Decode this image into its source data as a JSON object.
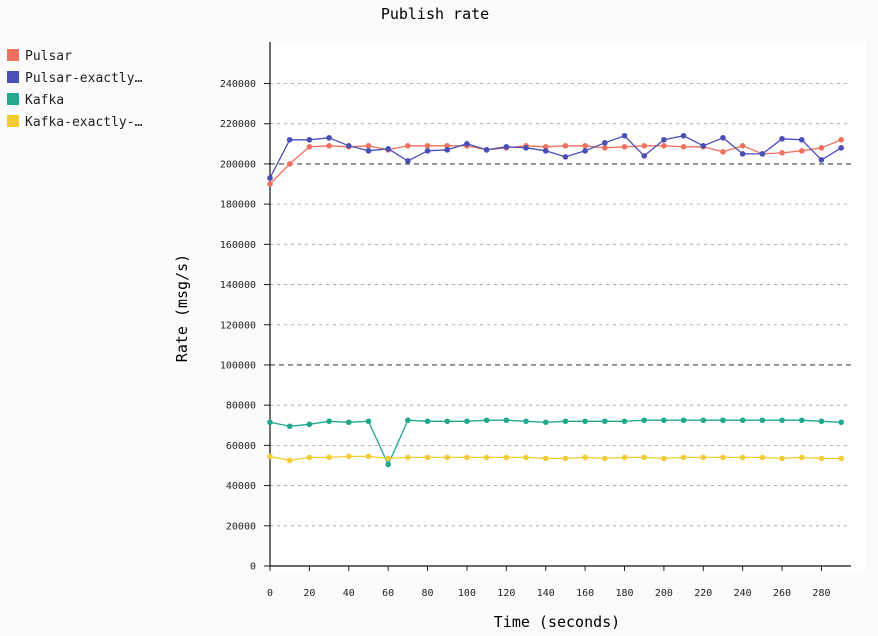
{
  "chart_data": {
    "type": "line",
    "title": "Publish rate",
    "xlabel": "Time (seconds)",
    "ylabel": "Rate (msg/s)",
    "xlim": [
      0,
      295
    ],
    "ylim": [
      0,
      260000
    ],
    "grid": "horizontal dashed",
    "legend_placement": "left",
    "x_ticks": [
      0,
      20,
      40,
      60,
      80,
      100,
      120,
      140,
      160,
      180,
      200,
      220,
      240,
      260,
      280
    ],
    "y_ticks": [
      0,
      20000,
      40000,
      60000,
      80000,
      100000,
      120000,
      140000,
      160000,
      180000,
      200000,
      220000,
      240000
    ],
    "x": [
      0,
      10,
      20,
      30,
      40,
      50,
      60,
      70,
      80,
      90,
      100,
      110,
      120,
      130,
      140,
      150,
      160,
      170,
      180,
      190,
      200,
      210,
      220,
      230,
      240,
      250,
      260,
      270,
      280,
      290
    ],
    "series": [
      {
        "name": "Pulsar",
        "legend_label": "Pulsar",
        "color": "#f2705f",
        "values": [
          190000,
          200000,
          208500,
          209000,
          208500,
          209000,
          207000,
          209000,
          209000,
          209000,
          209000,
          207000,
          208000,
          209000,
          208500,
          209000,
          209000,
          208000,
          208500,
          209000,
          209000,
          208500,
          208500,
          206000,
          209000,
          205000,
          205500,
          206500,
          208000,
          212000
        ]
      },
      {
        "name": "Pulsar-exactly-once",
        "legend_label": "Pulsar-exactly…",
        "color": "#4a4fb8",
        "values": [
          193000,
          212000,
          212000,
          213000,
          209000,
          206500,
          207500,
          201500,
          206500,
          207000,
          210000,
          207000,
          208500,
          208000,
          206500,
          203500,
          206500,
          210500,
          214000,
          204000,
          212000,
          214000,
          209000,
          213000,
          205000,
          205000,
          212500,
          212000,
          202000,
          208000
        ]
      },
      {
        "name": "Kafka",
        "legend_label": "Kafka",
        "color": "#20a98c",
        "values": [
          71500,
          69500,
          70500,
          72000,
          71500,
          72000,
          50500,
          72500,
          72000,
          72000,
          72000,
          72500,
          72500,
          72000,
          71500,
          72000,
          72000,
          72000,
          72000,
          72500,
          72500,
          72500,
          72500,
          72500,
          72500,
          72500,
          72500,
          72500,
          72000,
          71500
        ]
      },
      {
        "name": "Kafka-exactly-once",
        "legend_label": "Kafka-exactly-…",
        "color": "#f1cc33",
        "values": [
          54500,
          52500,
          54000,
          54000,
          54500,
          54500,
          53500,
          54000,
          54000,
          54000,
          54000,
          54000,
          54000,
          54000,
          53500,
          53500,
          54000,
          53500,
          54000,
          54000,
          53500,
          54000,
          54000,
          54000,
          54000,
          54000,
          53500,
          54000,
          53500,
          53500
        ]
      }
    ]
  }
}
